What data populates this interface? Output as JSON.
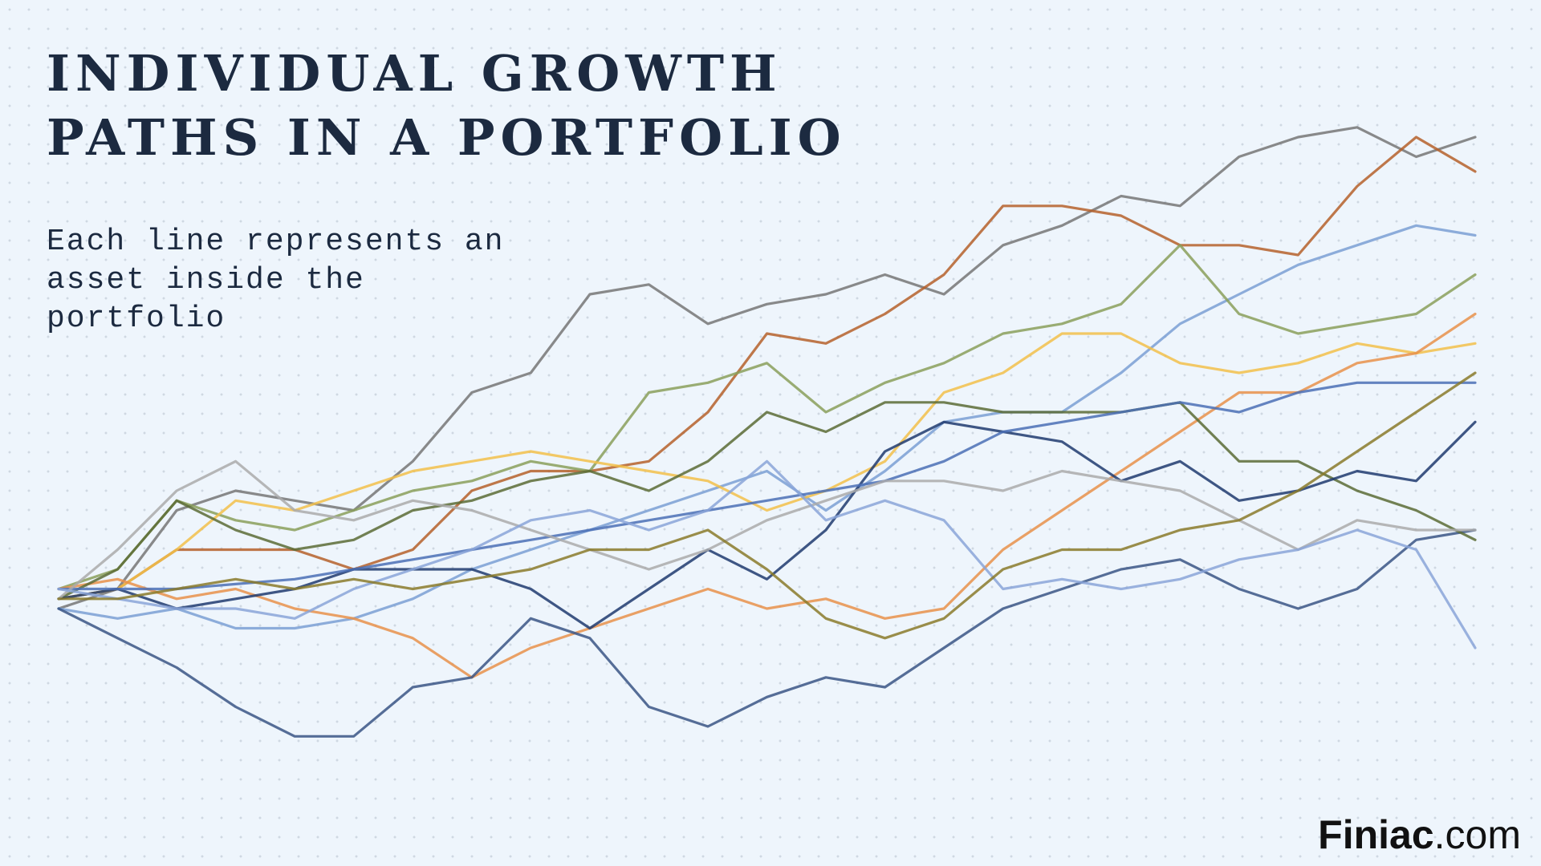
{
  "chart_data": {
    "type": "line",
    "title_lines": [
      "INDIVIDUAL GROWTH",
      "PATHS IN A PORTFOLIO"
    ],
    "subtitle_lines": [
      "Each line represents an",
      "asset inside the",
      "portfolio"
    ],
    "brand_bold": "Finiac",
    "brand_rest": ".com",
    "x": [
      0,
      1,
      2,
      3,
      4,
      5,
      6,
      7,
      8,
      9,
      10,
      11,
      12,
      13,
      14,
      15,
      16,
      17,
      18,
      19,
      20,
      21,
      22,
      23,
      24
    ],
    "xlim": [
      0,
      24
    ],
    "ylim": [
      60,
      220
    ],
    "series": [
      {
        "color": "#767676",
        "values": [
          100,
          104,
          120,
          124,
          122,
          120,
          130,
          144,
          148,
          164,
          166,
          158,
          162,
          164,
          168,
          164,
          174,
          178,
          184,
          182,
          192,
          196,
          198,
          192,
          196
        ]
      },
      {
        "color": "#b5602a",
        "values": [
          102,
          104,
          112,
          112,
          112,
          108,
          112,
          124,
          128,
          128,
          130,
          140,
          156,
          154,
          160,
          168,
          182,
          182,
          180,
          174,
          174,
          172,
          186,
          196,
          189
        ]
      },
      {
        "color": "#7a9fd4",
        "values": [
          100,
          98,
          100,
          96,
          96,
          98,
          102,
          108,
          112,
          116,
          120,
          124,
          128,
          120,
          128,
          138,
          140,
          140,
          148,
          158,
          164,
          170,
          174,
          178,
          176
        ]
      },
      {
        "color": "#8a9f5a",
        "values": [
          104,
          108,
          122,
          118,
          116,
          120,
          124,
          126,
          130,
          128,
          144,
          146,
          150,
          140,
          146,
          150,
          156,
          158,
          162,
          174,
          160,
          156,
          158,
          160,
          168
        ]
      },
      {
        "color": "#f2c04a",
        "values": [
          102,
          104,
          112,
          122,
          120,
          124,
          128,
          130,
          132,
          130,
          128,
          126,
          120,
          124,
          130,
          144,
          148,
          156,
          156,
          150,
          148,
          150,
          154,
          152,
          154
        ]
      },
      {
        "color": "#e8914a",
        "values": [
          104,
          106,
          102,
          104,
          100,
          98,
          94,
          86,
          92,
          96,
          100,
          104,
          100,
          102,
          98,
          100,
          112,
          120,
          128,
          136,
          144,
          144,
          150,
          152,
          160
        ]
      },
      {
        "color": "#3a5585",
        "values": [
          100,
          94,
          88,
          80,
          74,
          74,
          84,
          86,
          98,
          94,
          80,
          76,
          82,
          86,
          84,
          92,
          100,
          104,
          108,
          110,
          104,
          100,
          104,
          114,
          116
        ]
      },
      {
        "color": "#5b6b35",
        "values": [
          102,
          108,
          122,
          116,
          112,
          114,
          120,
          122,
          126,
          128,
          124,
          130,
          140,
          136,
          142,
          142,
          140,
          140,
          140,
          142,
          130,
          130,
          124,
          120,
          114
        ]
      },
      {
        "color": "#1f3a6e",
        "values": [
          102,
          104,
          100,
          102,
          104,
          108,
          108,
          108,
          104,
          96,
          104,
          112,
          106,
          116,
          132,
          138,
          136,
          134,
          126,
          130,
          122,
          124,
          128,
          126,
          138
        ]
      },
      {
        "color": "#4a6fb5",
        "values": [
          104,
          104,
          104,
          105,
          106,
          108,
          110,
          112,
          114,
          116,
          118,
          120,
          122,
          124,
          126,
          130,
          136,
          138,
          140,
          142,
          140,
          144,
          146,
          146,
          146
        ]
      },
      {
        "color": "#aaaaaa",
        "values": [
          102,
          112,
          124,
          130,
          120,
          118,
          122,
          120,
          116,
          112,
          108,
          112,
          118,
          122,
          126,
          126,
          124,
          128,
          126,
          124,
          118,
          112,
          118,
          116,
          116
        ]
      },
      {
        "color": "#8aa5d8",
        "values": [
          104,
          102,
          100,
          100,
          98,
          104,
          108,
          112,
          118,
          120,
          116,
          120,
          130,
          118,
          122,
          118,
          104,
          106,
          104,
          106,
          110,
          112,
          116,
          112,
          92
        ]
      },
      {
        "color": "#8a7a2a",
        "values": [
          102,
          102,
          104,
          106,
          104,
          106,
          104,
          106,
          108,
          112,
          112,
          116,
          108,
          98,
          94,
          98,
          108,
          112,
          112,
          116,
          118,
          124,
          132,
          140,
          148
        ]
      }
    ]
  }
}
